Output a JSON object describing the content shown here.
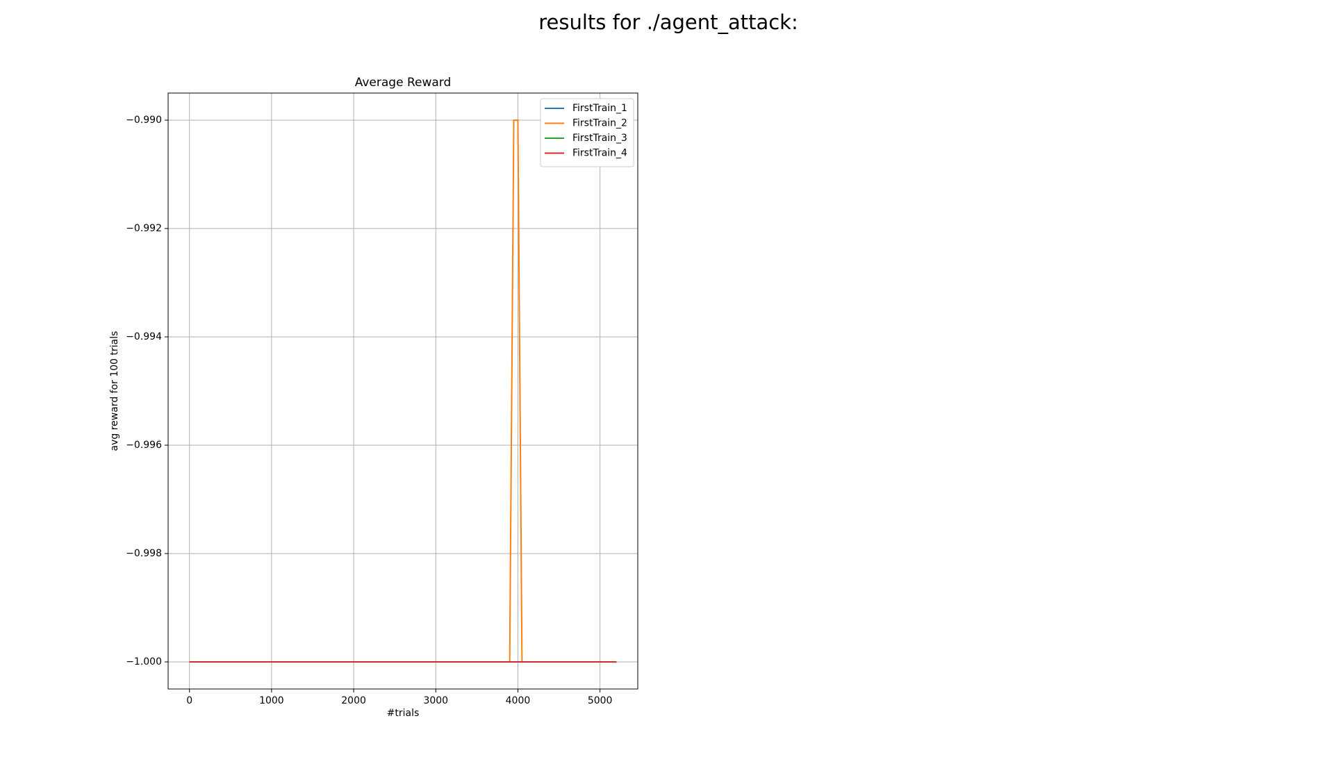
{
  "chart_data": {
    "type": "line",
    "suptitle": "results for ./agent_attack:",
    "title": "Average Reward",
    "xlabel": "#trials",
    "ylabel": "avg reward for 100 trials",
    "x": [
      0,
      3900,
      3950,
      4000,
      4050,
      5200
    ],
    "series": [
      {
        "name": "FirstTrain_1",
        "color": "#1f77b4",
        "values": [
          -1.0,
          -1.0,
          -1.0,
          -1.0,
          -1.0,
          -1.0
        ]
      },
      {
        "name": "FirstTrain_2",
        "color": "#ff7f0e",
        "values": [
          -1.0,
          -1.0,
          -0.99,
          -0.99,
          -1.0,
          -1.0
        ]
      },
      {
        "name": "FirstTrain_3",
        "color": "#2ca02c",
        "values": [
          -1.0,
          -1.0,
          -1.0,
          -1.0,
          -1.0,
          -1.0
        ]
      },
      {
        "name": "FirstTrain_4",
        "color": "#d62728",
        "values": [
          -1.0,
          -1.0,
          -1.0,
          -1.0,
          -1.0,
          -1.0
        ]
      }
    ],
    "xlim": [
      -260,
      5460
    ],
    "ylim": [
      -1.0005,
      -0.9895
    ],
    "xticks": [
      0,
      1000,
      2000,
      3000,
      4000,
      5000
    ],
    "yticks": [
      {
        "value": -1.0,
        "label": "−1.000"
      },
      {
        "value": -0.998,
        "label": "−0.998"
      },
      {
        "value": -0.996,
        "label": "−0.996"
      },
      {
        "value": -0.994,
        "label": "−0.994"
      },
      {
        "value": -0.992,
        "label": "−0.992"
      },
      {
        "value": -0.99,
        "label": "−0.990"
      }
    ],
    "grid": true,
    "legend": "upper right"
  }
}
